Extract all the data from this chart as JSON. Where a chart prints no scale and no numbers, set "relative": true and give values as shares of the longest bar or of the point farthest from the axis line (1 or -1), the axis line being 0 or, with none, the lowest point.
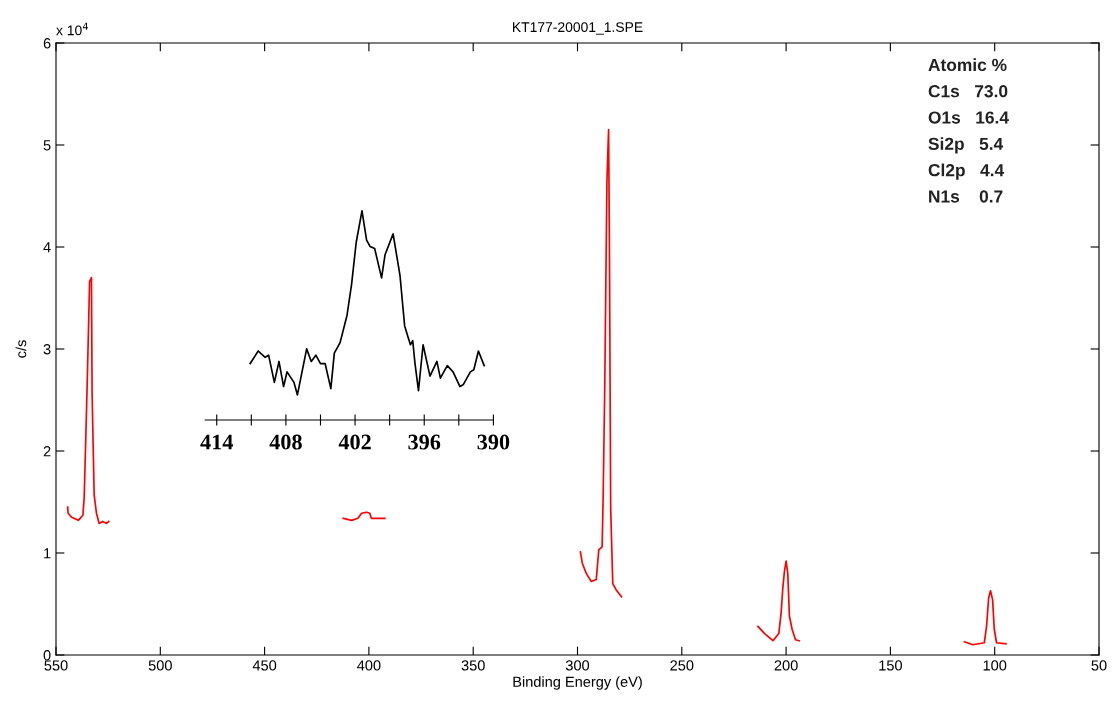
{
  "chart_data": [
    {
      "type": "line",
      "title": "KT177-20001_1.SPE",
      "xlabel": "Binding Energy (eV)",
      "ylabel": "c/s",
      "xlim": [
        550,
        50
      ],
      "xticks": [
        550,
        500,
        450,
        400,
        350,
        300,
        250,
        200,
        150,
        100,
        50
      ],
      "ylim": [
        0,
        6
      ],
      "yticks": [
        0,
        1,
        2,
        3,
        4,
        5,
        6
      ],
      "grid": false,
      "legend": false,
      "annotations": [
        "x 10$^{4}$",
        "Atomic %",
        "C1s   73.0",
        "O1s   16.4",
        "Si2p   5.4",
        "Cl2p   4.4",
        "N1s    0.7"
      ],
      "series": [
        {
          "color": "#ff0000",
          "x": [
            544.4,
            544.2,
            542.5,
            539.3,
            537.1,
            536.5,
            535.8,
            534.9,
            533.9,
            533.0,
            532.7,
            531.7,
            530.6,
            529.3,
            527.6,
            525.8,
            524.7
          ],
          "values": [
            1.45,
            1.39,
            1.35,
            1.32,
            1.37,
            1.54,
            2.06,
            2.78,
            3.66,
            3.7,
            2.57,
            1.57,
            1.39,
            1.29,
            1.31,
            1.29,
            1.31
          ]
        },
        {
          "color": "#ff0000",
          "x": [
            412.3,
            408.3,
            405.3,
            403.5,
            401.1,
            399.6,
            398.8,
            392.4
          ],
          "values": [
            1.34,
            1.32,
            1.34,
            1.39,
            1.4,
            1.39,
            1.34,
            1.34
          ]
        },
        {
          "color": "#ff0000",
          "x": [
            298.6,
            297.7,
            295.8,
            293.4,
            291.0,
            289.8,
            288.2,
            287.7,
            286.9,
            285.9,
            285.1,
            284.7,
            284.1,
            283.1,
            281.5,
            278.9
          ],
          "values": [
            1.01,
            0.9,
            0.8,
            0.72,
            0.74,
            1.03,
            1.06,
            1.55,
            2.68,
            4.64,
            5.15,
            4.06,
            1.45,
            0.7,
            0.64,
            0.57
          ]
        },
        {
          "color": "#ff0000",
          "x": [
            213.5,
            210.3,
            206.3,
            203.5,
            202.4,
            201.6,
            200.8,
            200.0,
            199.2,
            198.4,
            197.1,
            195.5,
            193.7
          ],
          "values": [
            0.28,
            0.21,
            0.14,
            0.21,
            0.41,
            0.65,
            0.82,
            0.92,
            0.8,
            0.38,
            0.25,
            0.15,
            0.14
          ]
        },
        {
          "color": "#ff0000",
          "x": [
            114.5,
            110.5,
            105.0,
            103.9,
            102.9,
            102.0,
            101.0,
            100.2,
            99.1,
            94.6
          ],
          "values": [
            0.13,
            0.1,
            0.12,
            0.28,
            0.56,
            0.63,
            0.54,
            0.25,
            0.12,
            0.11
          ]
        }
      ]
    },
    {
      "type": "line",
      "relative": true,
      "tick_labels": "x",
      "xlim": [
        415,
        390
      ],
      "xticks": [
        414,
        {
          "value": 411,
          "label": null
        },
        408,
        {
          "value": 405,
          "label": null
        },
        402,
        {
          "value": 399,
          "label": null
        },
        396,
        {
          "value": 393,
          "label": null
        },
        390
      ],
      "series": [
        {
          "color": "#000000",
          "x": [
            411.1,
            410.4,
            409.8,
            409.5,
            409.0,
            408.6,
            408.2,
            407.9,
            407.3,
            407.0,
            406.2,
            405.8,
            405.4,
            405.0,
            404.6,
            404.1,
            403.8,
            403.3,
            402.7,
            402.3,
            401.9,
            401.4,
            401.0,
            400.7,
            400.3,
            399.7,
            399.4,
            398.7,
            398.1,
            397.7,
            397.2,
            397.0,
            396.8,
            396.5,
            396.1,
            395.5,
            394.9,
            394.6,
            394.0,
            393.5,
            392.9,
            392.6,
            392.0,
            391.7,
            391.3,
            390.8
          ],
          "values": [
            0.27,
            0.33,
            0.3,
            0.31,
            0.18,
            0.28,
            0.16,
            0.23,
            0.18,
            0.12,
            0.34,
            0.28,
            0.31,
            0.27,
            0.27,
            0.15,
            0.32,
            0.37,
            0.5,
            0.65,
            0.85,
            1.0,
            0.86,
            0.83,
            0.82,
            0.68,
            0.79,
            0.89,
            0.69,
            0.45,
            0.36,
            0.38,
            0.27,
            0.14,
            0.36,
            0.21,
            0.28,
            0.2,
            0.26,
            0.23,
            0.16,
            0.17,
            0.23,
            0.24,
            0.33,
            0.26
          ]
        }
      ]
    }
  ]
}
